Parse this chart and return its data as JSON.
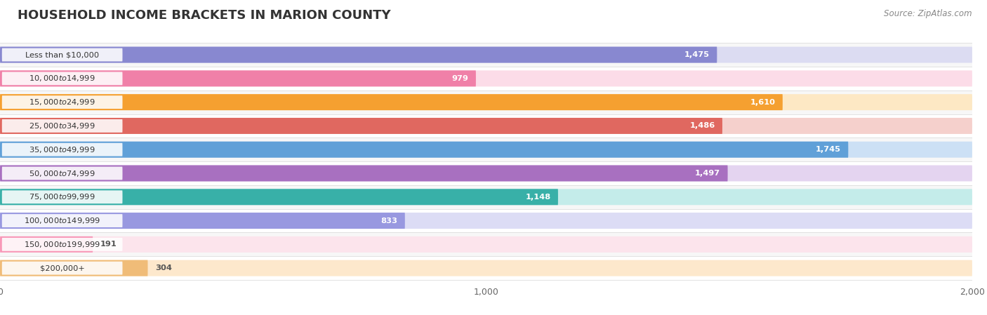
{
  "title": "HOUSEHOLD INCOME BRACKETS IN MARION COUNTY",
  "source": "Source: ZipAtlas.com",
  "categories": [
    "Less than $10,000",
    "$10,000 to $14,999",
    "$15,000 to $24,999",
    "$25,000 to $34,999",
    "$35,000 to $49,999",
    "$50,000 to $74,999",
    "$75,000 to $99,999",
    "$100,000 to $149,999",
    "$150,000 to $199,999",
    "$200,000+"
  ],
  "values": [
    1475,
    979,
    1610,
    1486,
    1745,
    1497,
    1148,
    833,
    191,
    304
  ],
  "bar_colors": [
    "#8888d0",
    "#f080a8",
    "#f5a030",
    "#e06860",
    "#60a0d8",
    "#a870c0",
    "#38b0a8",
    "#9898e0",
    "#f898b8",
    "#f0bc78"
  ],
  "bar_bg_colors": [
    "#dcdcf2",
    "#fcdce8",
    "#fde8c4",
    "#f5d0cc",
    "#cce0f5",
    "#e4d4f0",
    "#c4ecea",
    "#dcdcf5",
    "#fce4ec",
    "#fde8cc"
  ],
  "value_label_colors": [
    "#ffffff",
    "#555555",
    "#ffffff",
    "#ffffff",
    "#ffffff",
    "#ffffff",
    "#555555",
    "#555555",
    "#555555",
    "#555555"
  ],
  "xlim": [
    0,
    2000
  ],
  "xticks": [
    0,
    1000,
    2000
  ],
  "bg_color": "#ffffff",
  "strip_color": "#f0f0f0",
  "title_fontsize": 13,
  "source_fontsize": 8.5
}
